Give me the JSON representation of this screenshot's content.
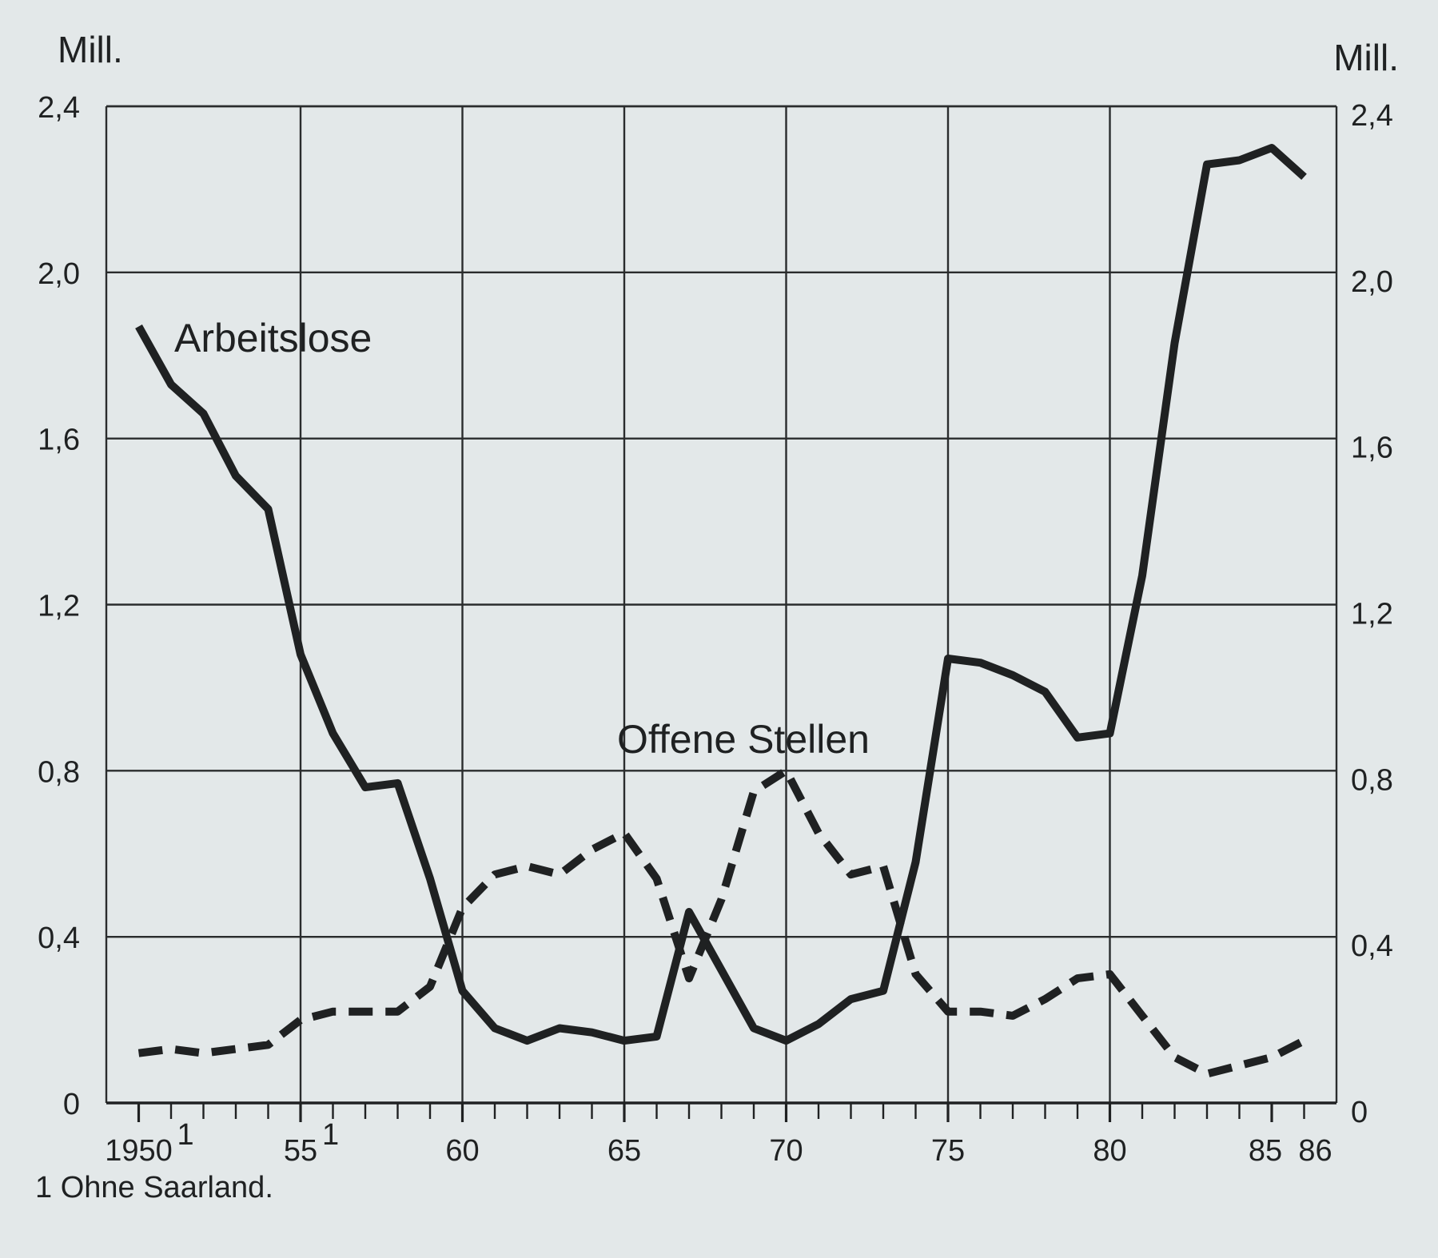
{
  "chart_data": {
    "type": "line",
    "x_ticks": [
      "1950",
      "55",
      "60",
      "65",
      "70",
      "75",
      "80",
      "85",
      "86"
    ],
    "x_tick_values": [
      1950,
      1955,
      1960,
      1965,
      1970,
      1975,
      1980,
      1985,
      1986
    ],
    "x_tick_superscripts": {
      "1950": "1",
      "55": "1"
    },
    "y_ticks": [
      "0",
      "0,4",
      "0,8",
      "1,2",
      "1,6",
      "2,0",
      "2,4"
    ],
    "y_tick_values": [
      0,
      0.4,
      0.8,
      1.2,
      1.6,
      2.0,
      2.4
    ],
    "ylabel_left": "Mill.",
    "ylabel_right": "Mill.",
    "xlim": [
      1949.0,
      1987.0
    ],
    "ylim": [
      0,
      2.4
    ],
    "grid": true,
    "footnote": "1  Ohne Saarland.",
    "x": [
      1950,
      1951,
      1952,
      1953,
      1954,
      1955,
      1956,
      1957,
      1958,
      1959,
      1960,
      1961,
      1962,
      1963,
      1964,
      1965,
      1966,
      1967,
      1968,
      1969,
      1970,
      1971,
      1972,
      1973,
      1974,
      1975,
      1976,
      1977,
      1978,
      1979,
      1980,
      1981,
      1982,
      1983,
      1984,
      1985,
      1986
    ],
    "series": [
      {
        "name": "Arbeitslose",
        "style": "solid",
        "color": "#1f2122",
        "values": [
          1.87,
          1.73,
          1.66,
          1.51,
          1.43,
          1.08,
          0.89,
          0.76,
          0.77,
          0.54,
          0.27,
          0.18,
          0.15,
          0.18,
          0.17,
          0.15,
          0.16,
          0.46,
          0.32,
          0.18,
          0.15,
          0.19,
          0.25,
          0.27,
          0.58,
          1.07,
          1.06,
          1.03,
          0.99,
          0.88,
          0.89,
          1.27,
          1.83,
          2.26,
          2.27,
          2.3,
          2.23
        ]
      },
      {
        "name": "Offene Stellen",
        "style": "dashed",
        "color": "#1f2122",
        "values": [
          0.12,
          0.13,
          0.12,
          0.13,
          0.14,
          0.2,
          0.22,
          0.22,
          0.22,
          0.28,
          0.47,
          0.55,
          0.57,
          0.55,
          0.61,
          0.65,
          0.54,
          0.3,
          0.49,
          0.75,
          0.8,
          0.65,
          0.55,
          0.57,
          0.31,
          0.22,
          0.22,
          0.21,
          0.25,
          0.3,
          0.31,
          0.21,
          0.11,
          0.07,
          0.09,
          0.11,
          0.15
        ]
      }
    ]
  }
}
